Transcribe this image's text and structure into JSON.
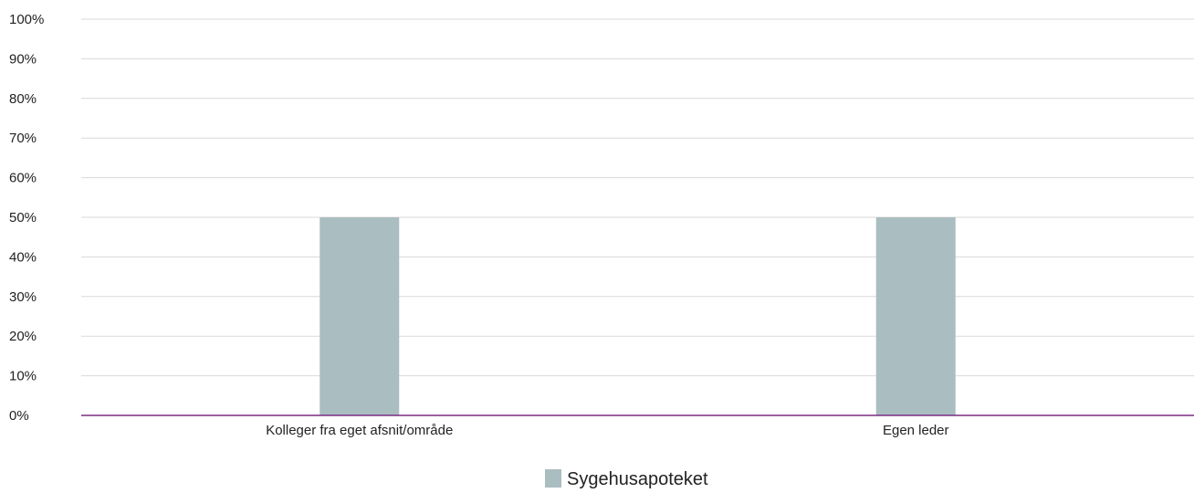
{
  "chart_data": {
    "type": "bar",
    "title": "",
    "xlabel": "",
    "ylabel": "",
    "categories": [
      "Kolleger fra eget afsnit/område",
      "Egen leder"
    ],
    "series": [
      {
        "name": "Sygehusapoteket",
        "values": [
          50,
          50
        ],
        "color": "#aabdc0"
      }
    ],
    "ylim": [
      0,
      100
    ],
    "yticks": [
      0,
      10,
      20,
      30,
      40,
      50,
      60,
      70,
      80,
      90,
      100
    ],
    "ytick_labels": [
      "0%",
      "10%",
      "20%",
      "30%",
      "40%",
      "50%",
      "60%",
      "70%",
      "80%",
      "90%",
      "100%"
    ],
    "grid": true,
    "legend_position": "bottom-center",
    "colors": {
      "gridline": "#d9d9d9",
      "baseline": "#7b2d83",
      "text": "#222222"
    }
  }
}
